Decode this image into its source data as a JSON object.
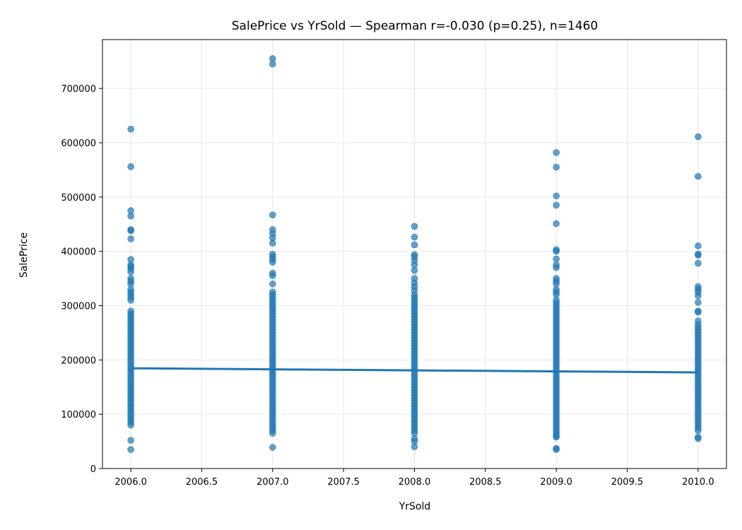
{
  "chart_data": {
    "type": "scatter",
    "title": "SalePrice vs YrSold — Spearman r=-0.030 (p=0.25), n=1460",
    "xlabel": "YrSold",
    "ylabel": "SalePrice",
    "xlim": [
      2005.8,
      2010.2
    ],
    "ylim": [
      0,
      790000
    ],
    "x_ticks": [
      2006.0,
      2006.5,
      2007.0,
      2007.5,
      2008.0,
      2008.5,
      2009.0,
      2009.5,
      2010.0
    ],
    "x_tick_labels": [
      "2006.0",
      "2006.5",
      "2007.0",
      "2007.5",
      "2008.0",
      "2008.5",
      "2009.0",
      "2009.5",
      "2010.0"
    ],
    "y_ticks": [
      0,
      100000,
      200000,
      300000,
      400000,
      500000,
      600000,
      700000
    ],
    "y_tick_labels": [
      "0",
      "100000",
      "200000",
      "300000",
      "400000",
      "500000",
      "600000",
      "700000"
    ],
    "grid": true,
    "colors": {
      "points": "#1f77b4",
      "line": "#1f77b4",
      "grid": "#e6e6e6"
    },
    "series": [
      {
        "x": 2006,
        "values": [
          625000,
          556000,
          475000,
          465000,
          440000,
          438000,
          423000,
          385000,
          375000,
          372000,
          368000,
          362000,
          350000,
          345000,
          340000,
          330000,
          325000,
          320000,
          315000,
          310000,
          290000,
          285000,
          280000,
          275000,
          270000,
          265000,
          260000,
          255000,
          250000,
          245000,
          240000,
          235000,
          230000,
          225000,
          220000,
          215000,
          210000,
          205000,
          200000,
          195000,
          190000,
          185000,
          180000,
          175000,
          170000,
          165000,
          160000,
          155000,
          150000,
          145000,
          140000,
          135000,
          130000,
          125000,
          120000,
          115000,
          110000,
          105000,
          100000,
          95000,
          90000,
          85000,
          80000,
          52000,
          35000
        ]
      },
      {
        "x": 2007,
        "values": [
          755000,
          745000,
          467000,
          440000,
          433000,
          425000,
          415000,
          395000,
          390000,
          385000,
          380000,
          360000,
          355000,
          340000,
          325000,
          320000,
          315000,
          310000,
          305000,
          300000,
          295000,
          290000,
          285000,
          280000,
          275000,
          270000,
          265000,
          260000,
          255000,
          250000,
          245000,
          240000,
          235000,
          230000,
          225000,
          220000,
          215000,
          210000,
          205000,
          200000,
          195000,
          190000,
          185000,
          180000,
          175000,
          170000,
          165000,
          160000,
          155000,
          150000,
          145000,
          140000,
          135000,
          130000,
          125000,
          120000,
          115000,
          110000,
          105000,
          100000,
          95000,
          90000,
          85000,
          80000,
          75000,
          70000,
          65000,
          39000
        ]
      },
      {
        "x": 2008,
        "values": [
          446000,
          426000,
          412000,
          394000,
          390000,
          383000,
          375000,
          365000,
          350000,
          342000,
          335000,
          328000,
          320000,
          315000,
          310000,
          305000,
          300000,
          295000,
          290000,
          285000,
          280000,
          275000,
          270000,
          265000,
          260000,
          255000,
          250000,
          245000,
          240000,
          235000,
          230000,
          225000,
          220000,
          215000,
          210000,
          205000,
          200000,
          195000,
          190000,
          185000,
          180000,
          175000,
          170000,
          165000,
          160000,
          155000,
          150000,
          145000,
          140000,
          135000,
          130000,
          125000,
          120000,
          115000,
          110000,
          105000,
          100000,
          95000,
          90000,
          85000,
          80000,
          75000,
          70000,
          65000,
          55000,
          50000,
          40000
        ]
      },
      {
        "x": 2009,
        "values": [
          582000,
          555000,
          502000,
          485000,
          451000,
          403000,
          400000,
          386000,
          375000,
          370000,
          350000,
          345000,
          340000,
          330000,
          325000,
          320000,
          310000,
          305000,
          300000,
          295000,
          290000,
          285000,
          280000,
          275000,
          270000,
          265000,
          260000,
          255000,
          250000,
          245000,
          240000,
          235000,
          230000,
          225000,
          220000,
          215000,
          210000,
          205000,
          200000,
          195000,
          190000,
          185000,
          180000,
          175000,
          170000,
          165000,
          160000,
          155000,
          150000,
          145000,
          140000,
          135000,
          130000,
          125000,
          120000,
          115000,
          110000,
          105000,
          100000,
          95000,
          90000,
          85000,
          80000,
          75000,
          70000,
          65000,
          60000,
          58000,
          37000,
          35000
        ]
      },
      {
        "x": 2010,
        "values": [
          611000,
          538000,
          410000,
          395000,
          393000,
          378000,
          335000,
          330000,
          325000,
          318000,
          306000,
          290000,
          288000,
          272000,
          265000,
          260000,
          255000,
          250000,
          245000,
          240000,
          235000,
          230000,
          225000,
          220000,
          215000,
          210000,
          205000,
          200000,
          195000,
          190000,
          185000,
          180000,
          175000,
          170000,
          165000,
          160000,
          155000,
          150000,
          145000,
          140000,
          135000,
          130000,
          125000,
          120000,
          115000,
          110000,
          105000,
          100000,
          95000,
          90000,
          85000,
          80000,
          75000,
          70000,
          58000,
          55000
        ]
      }
    ],
    "trendline": {
      "x": [
        2006.0,
        2010.0
      ],
      "y": [
        184600,
        177000
      ]
    }
  }
}
